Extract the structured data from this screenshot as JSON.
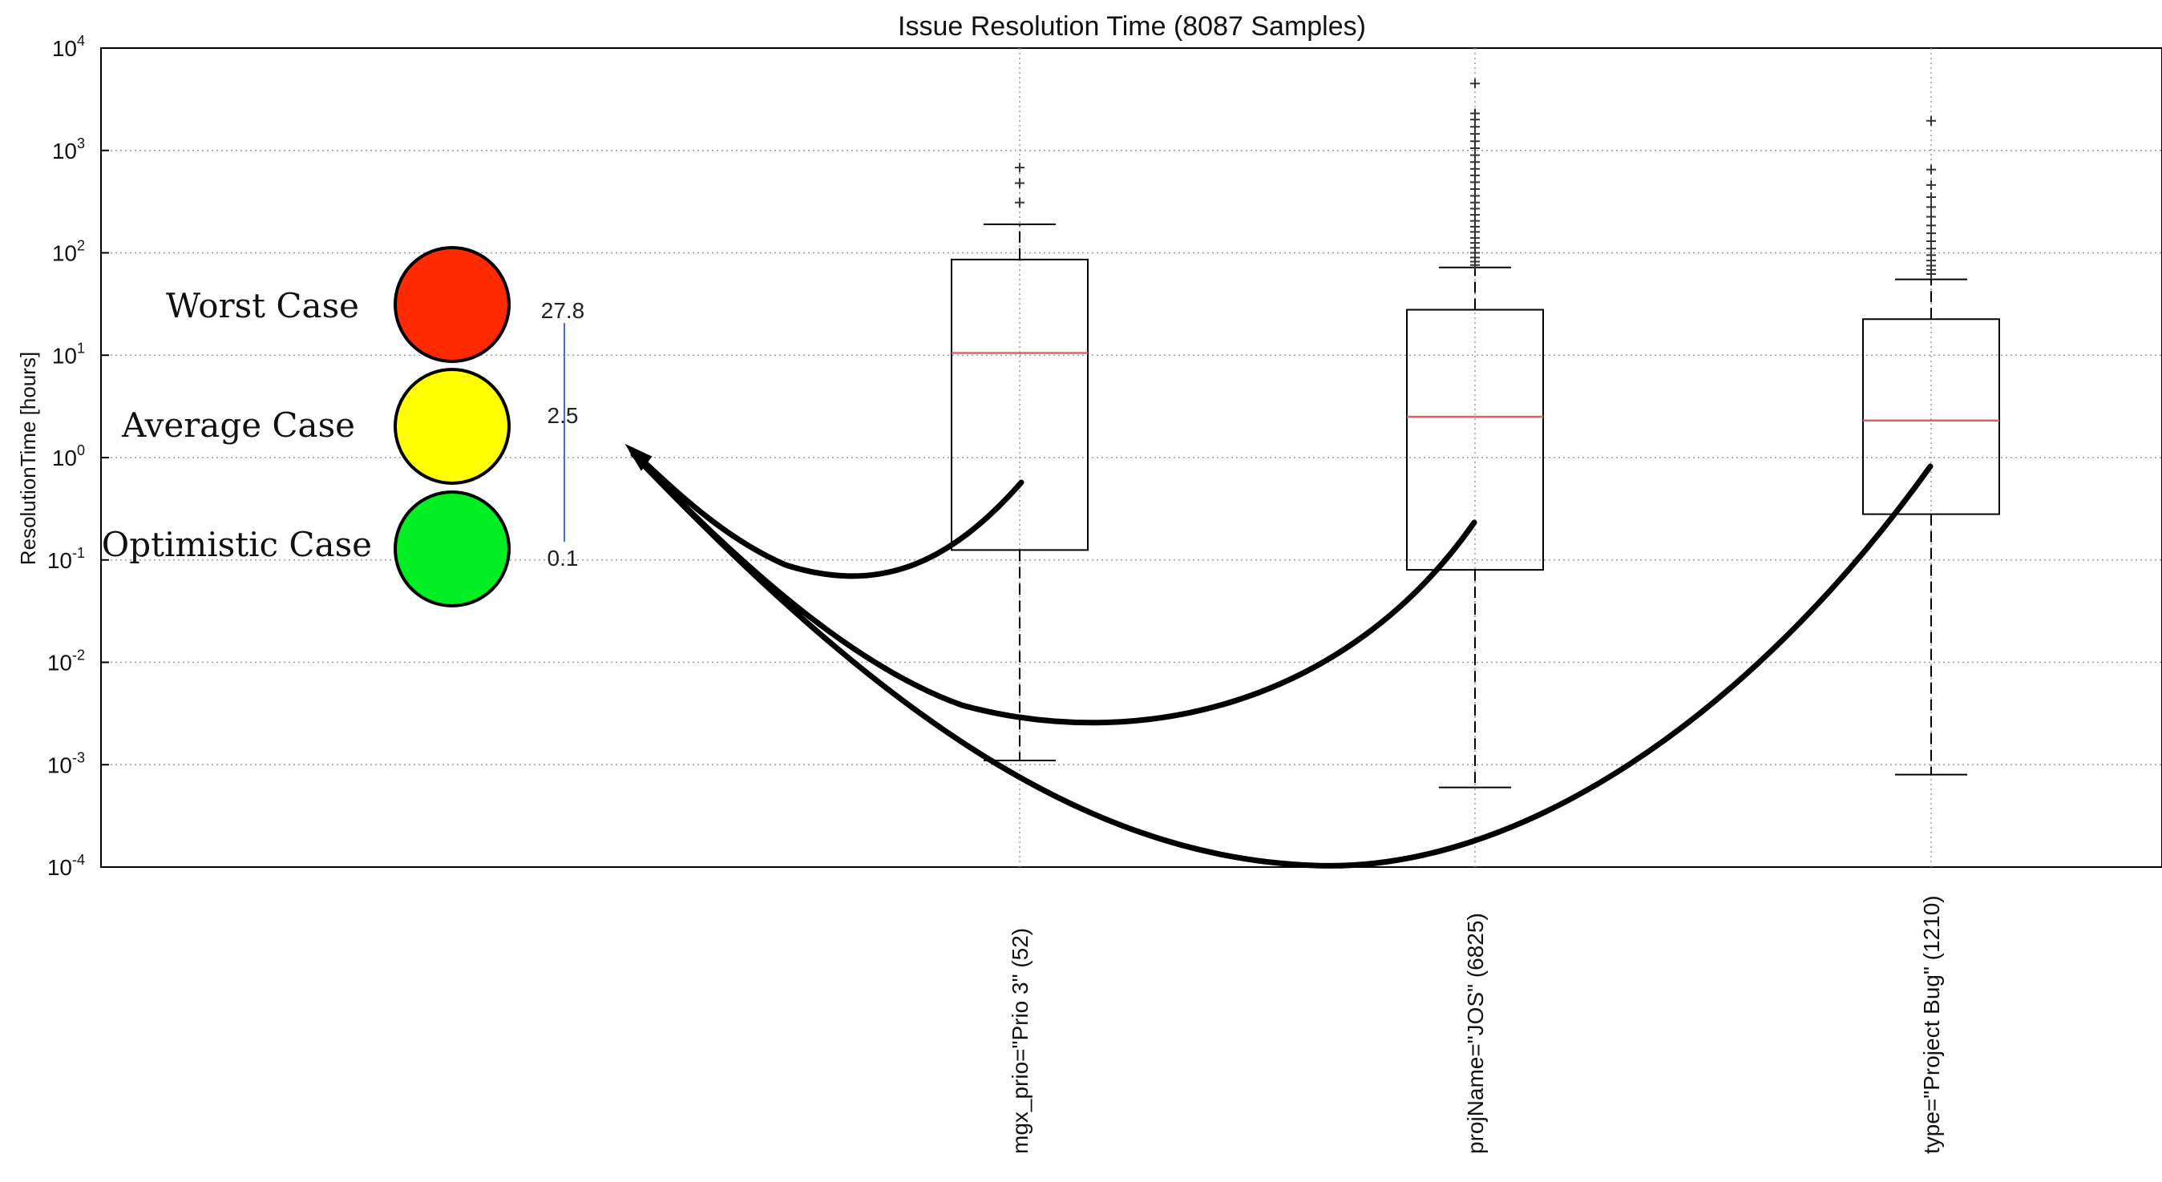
{
  "chart_data": {
    "type": "box",
    "title": "Issue Resolution Time (8087 Samples)",
    "ylabel": "ResolutionTime [hours]",
    "yscale": "log",
    "ylim": [
      0.0001,
      10000
    ],
    "yticks": [
      {
        "value": 10000,
        "base": "10",
        "exp": "4"
      },
      {
        "value": 1000,
        "base": "10",
        "exp": "3"
      },
      {
        "value": 100,
        "base": "10",
        "exp": "2"
      },
      {
        "value": 10,
        "base": "10",
        "exp": "1"
      },
      {
        "value": 1,
        "base": "10",
        "exp": "0"
      },
      {
        "value": 0.1,
        "base": "10",
        "exp": "-1"
      },
      {
        "value": 0.01,
        "base": "10",
        "exp": "-2"
      },
      {
        "value": 0.001,
        "base": "10",
        "exp": "-3"
      },
      {
        "value": 0.0001,
        "base": "10",
        "exp": "-4"
      }
    ],
    "grid": true,
    "box_color": "#000000",
    "median_color": "#e06060",
    "categories": [
      "mgx_prio=\"Prio 3\" (52)",
      "projName=\"JOS\" (6825)",
      "type=\"Project Bug\" (1210)"
    ],
    "boxes": [
      {
        "label": "mgx_prio=\"Prio 3\" (52)",
        "whisker_low": 0.0011,
        "q1": 0.125,
        "median": 10.5,
        "q3": 86,
        "whisker_high": 190,
        "outliers": [
          310,
          480,
          680
        ]
      },
      {
        "label": "projName=\"JOS\" (6825)",
        "whisker_low": 0.0006,
        "q1": 0.08,
        "median": 2.5,
        "q3": 27.8,
        "whisker_high": 72,
        "outliers": [
          76,
          82,
          90,
          100,
          112,
          125,
          140,
          160,
          180,
          205,
          235,
          270,
          310,
          360,
          420,
          490,
          570,
          660,
          770,
          900,
          1050,
          1230,
          1450,
          1700,
          2000,
          2300,
          4500
        ]
      },
      {
        "label": "type=\"Project Bug\" (1210)",
        "whisker_low": 0.0008,
        "q1": 0.28,
        "median": 2.3,
        "q3": 22.5,
        "whisker_high": 55,
        "outliers": [
          62,
          68,
          75,
          84,
          95,
          110,
          130,
          155,
          185,
          225,
          280,
          350,
          460,
          650,
          1950
        ]
      }
    ]
  },
  "legend": {
    "items": [
      {
        "label": "Worst Case",
        "color": "#ff2a00"
      },
      {
        "label": "Average Case",
        "color": "#ffff00"
      },
      {
        "label": "Optimistic Case",
        "color": "#00ee22"
      }
    ],
    "scale_values": [
      "27.8",
      "2.5",
      "0.1"
    ],
    "scale_line_color": "#4a6fd0"
  }
}
